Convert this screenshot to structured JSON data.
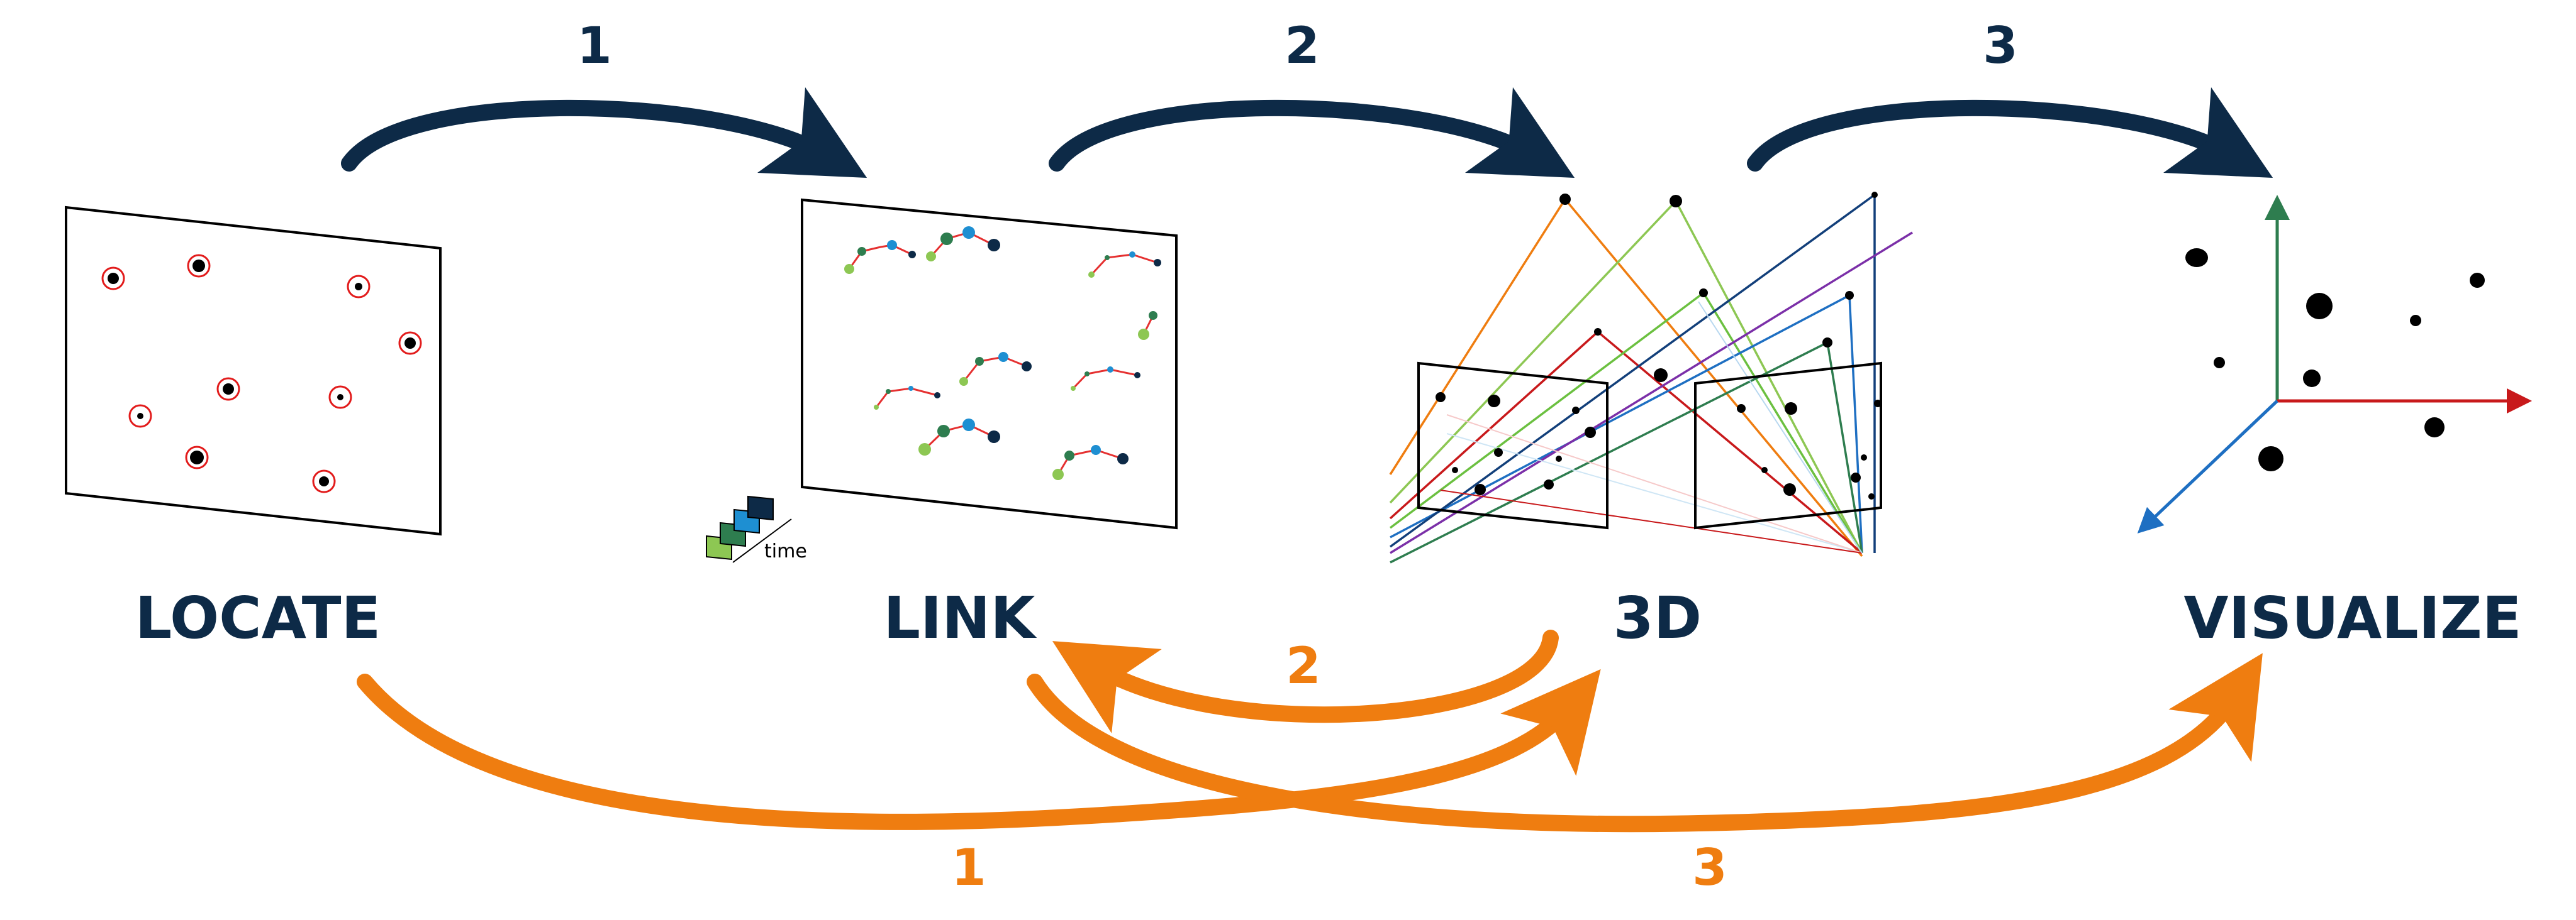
{
  "stages": {
    "locate": "LOCATE",
    "link": "LINK",
    "three_d": "3D",
    "visualize": "VISUALIZE"
  },
  "top_arrows": [
    "1",
    "2",
    "3"
  ],
  "bottom_arrows": [
    "2",
    "1",
    "3"
  ],
  "time_label": "time",
  "colors": {
    "navy": "#0d2a47",
    "orange": "#ef7d10",
    "detection_ring": "#e21b1b",
    "track_line": "#e53030",
    "axis_green": "#2e7d4f",
    "axis_red": "#c8191b",
    "axis_blue": "#1e6fc2"
  }
}
